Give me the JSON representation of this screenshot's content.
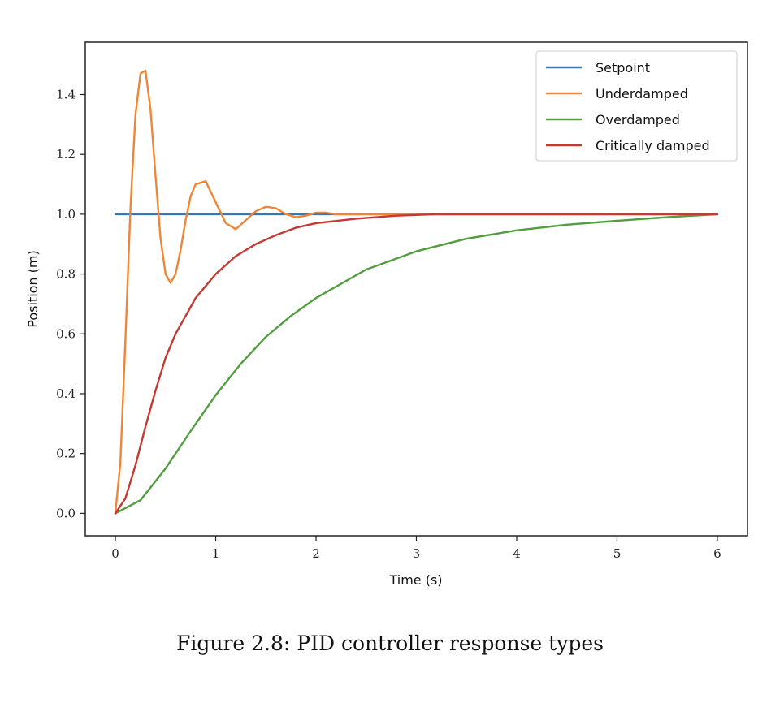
{
  "chart_data": {
    "type": "line",
    "xlabel": "Time (s)",
    "ylabel": "Position (m)",
    "xlim": [
      -0.3,
      6.3
    ],
    "ylim": [
      -0.075,
      1.575
    ],
    "xticks": [
      "0",
      "1",
      "2",
      "3",
      "4",
      "5",
      "6"
    ],
    "yticks": [
      "0.0",
      "0.2",
      "0.4",
      "0.6",
      "0.8",
      "1.0",
      "1.2",
      "1.4"
    ],
    "legend_position": "top-right",
    "grid": false,
    "series": [
      {
        "name": "Setpoint",
        "color": "#3b75af",
        "x": [
          0,
          6
        ],
        "y": [
          1.0,
          1.0
        ]
      },
      {
        "name": "Underdamped",
        "color": "#ef8636",
        "x": [
          0,
          0.05,
          0.1,
          0.15,
          0.2,
          0.25,
          0.3,
          0.35,
          0.4,
          0.45,
          0.5,
          0.55,
          0.6,
          0.65,
          0.7,
          0.75,
          0.8,
          0.9,
          1.0,
          1.1,
          1.2,
          1.3,
          1.4,
          1.5,
          1.6,
          1.7,
          1.8,
          1.9,
          2.0,
          2.1,
          2.2,
          2.4,
          2.6,
          3.0,
          6.0
        ],
        "y": [
          0.0,
          0.17,
          0.58,
          1.02,
          1.33,
          1.47,
          1.48,
          1.35,
          1.13,
          0.92,
          0.8,
          0.77,
          0.8,
          0.88,
          0.98,
          1.06,
          1.1,
          1.11,
          1.04,
          0.97,
          0.95,
          0.98,
          1.01,
          1.025,
          1.02,
          1.0,
          0.99,
          0.995,
          1.005,
          1.005,
          1.0,
          1.0,
          1.0,
          1.0,
          1.0
        ]
      },
      {
        "name": "Overdamped",
        "color": "#529e3e",
        "x": [
          0,
          0.25,
          0.5,
          0.75,
          1.0,
          1.25,
          1.5,
          1.75,
          2.0,
          2.5,
          3.0,
          3.5,
          4.0,
          4.5,
          5.0,
          5.5,
          6.0
        ],
        "y": [
          0.0,
          0.044,
          0.15,
          0.275,
          0.395,
          0.5,
          0.59,
          0.66,
          0.72,
          0.815,
          0.876,
          0.918,
          0.946,
          0.965,
          0.978,
          0.99,
          1.0
        ]
      },
      {
        "name": "Critically damped",
        "color": "#c43932",
        "x": [
          0,
          0.1,
          0.2,
          0.3,
          0.4,
          0.5,
          0.6,
          0.7,
          0.8,
          0.9,
          1.0,
          1.2,
          1.4,
          1.6,
          1.8,
          2.0,
          2.4,
          2.8,
          3.2,
          4.0,
          5.0,
          6.0
        ],
        "y": [
          0.0,
          0.05,
          0.16,
          0.29,
          0.41,
          0.52,
          0.6,
          0.66,
          0.72,
          0.76,
          0.8,
          0.86,
          0.9,
          0.93,
          0.955,
          0.97,
          0.985,
          0.995,
          1.0,
          1.0,
          1.0,
          1.0
        ]
      }
    ]
  },
  "caption": "Figure 2.8: PID controller response types"
}
